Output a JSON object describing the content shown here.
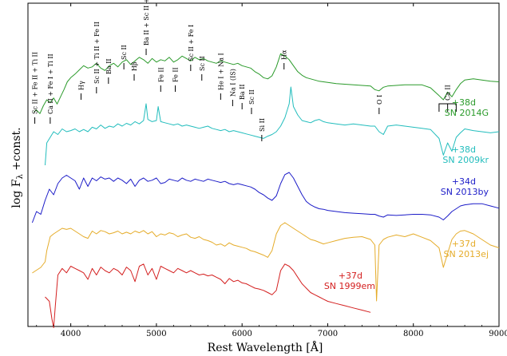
{
  "chart_data": {
    "type": "line",
    "xlabel": "Rest Wavelength [Å]",
    "ylabel": "log F",
    "ylabel_sub": "λ",
    "ylabel_suffix": " +const.",
    "xlim": [
      3500,
      9000
    ],
    "xticks": [
      4000,
      5000,
      6000,
      7000,
      8000,
      9000
    ],
    "x_tick_labels": [
      "4000",
      "5000",
      "6000",
      "7000",
      "8000",
      "9000"
    ],
    "y_ticks_shown": false,
    "grid": false,
    "series": [
      {
        "epoch": "+38d",
        "name": "SN 2014G",
        "color": "#2a9a2a",
        "x": [
          3570,
          3600,
          3640,
          3680,
          3720,
          3760,
          3800,
          3840,
          3880,
          3920,
          3960,
          4000,
          4050,
          4100,
          4150,
          4200,
          4250,
          4300,
          4350,
          4400,
          4450,
          4500,
          4550,
          4600,
          4650,
          4700,
          4750,
          4800,
          4850,
          4900,
          4950,
          5000,
          5050,
          5100,
          5150,
          5200,
          5250,
          5300,
          5350,
          5400,
          5450,
          5500,
          5550,
          5600,
          5650,
          5700,
          5750,
          5800,
          5850,
          5900,
          5950,
          6000,
          6050,
          6100,
          6150,
          6200,
          6250,
          6300,
          6350,
          6400,
          6450,
          6500,
          6550,
          6600,
          6650,
          6700,
          6750,
          6800,
          6850,
          6900,
          6950,
          7000,
          7100,
          7200,
          7300,
          7400,
          7500,
          7550,
          7600,
          7650,
          7700,
          7800,
          7900,
          8000,
          8100,
          8200,
          8300,
          8350,
          8400,
          8450,
          8500,
          8550,
          8600,
          8700,
          8800,
          8900,
          9000
        ],
        "y": [
          -0.15,
          -0.12,
          -0.18,
          -0.05,
          0.05,
          0.0,
          0.08,
          -0.02,
          0.1,
          0.22,
          0.35,
          0.42,
          0.48,
          0.55,
          0.62,
          0.58,
          0.6,
          0.66,
          0.58,
          0.54,
          0.62,
          0.66,
          0.6,
          0.68,
          0.72,
          0.64,
          0.7,
          0.76,
          0.72,
          0.66,
          0.74,
          0.68,
          0.72,
          0.7,
          0.76,
          0.68,
          0.72,
          0.78,
          0.74,
          0.7,
          0.76,
          0.72,
          0.74,
          0.7,
          0.68,
          0.66,
          0.7,
          0.68,
          0.66,
          0.64,
          0.66,
          0.62,
          0.6,
          0.58,
          0.52,
          0.48,
          0.42,
          0.4,
          0.45,
          0.6,
          0.82,
          0.78,
          0.72,
          0.62,
          0.52,
          0.46,
          0.42,
          0.4,
          0.38,
          0.36,
          0.35,
          0.34,
          0.32,
          0.31,
          0.3,
          0.29,
          0.28,
          0.22,
          0.2,
          0.26,
          0.28,
          0.29,
          0.3,
          0.3,
          0.3,
          0.25,
          0.12,
          0.05,
          0.18,
          0.1,
          0.22,
          0.32,
          0.38,
          0.4,
          0.38,
          0.36,
          0.35
        ]
      },
      {
        "epoch": "+38d",
        "name": "SN 2009kr",
        "color": "#22bdbd",
        "x": [
          3700,
          3720,
          3760,
          3800,
          3850,
          3900,
          3950,
          4000,
          4050,
          4100,
          4150,
          4200,
          4250,
          4300,
          4350,
          4400,
          4450,
          4500,
          4550,
          4600,
          4650,
          4700,
          4750,
          4800,
          4850,
          4880,
          4900,
          4950,
          5000,
          5020,
          5050,
          5100,
          5150,
          5200,
          5250,
          5300,
          5350,
          5400,
          5450,
          5500,
          5550,
          5600,
          5650,
          5700,
          5750,
          5800,
          5850,
          5900,
          5950,
          6000,
          6050,
          6100,
          6150,
          6200,
          6250,
          6300,
          6350,
          6400,
          6450,
          6500,
          6550,
          6570,
          6600,
          6650,
          6700,
          6750,
          6800,
          6850,
          6900,
          6950,
          7000,
          7100,
          7200,
          7300,
          7400,
          7500,
          7550,
          7600,
          7650,
          7700,
          7800,
          7900,
          8000,
          8100,
          8200,
          8300,
          8350,
          8400,
          8450,
          8500,
          8550,
          8600,
          8700,
          8800,
          8900,
          9000
        ],
        "y": [
          -0.6,
          -0.2,
          -0.1,
          0.0,
          -0.05,
          0.05,
          0.0,
          0.02,
          0.05,
          0.0,
          0.04,
          0.0,
          0.08,
          0.05,
          0.12,
          0.06,
          0.1,
          0.08,
          0.14,
          0.1,
          0.15,
          0.12,
          0.18,
          0.14,
          0.2,
          0.5,
          0.22,
          0.18,
          0.2,
          0.45,
          0.18,
          0.16,
          0.14,
          0.12,
          0.14,
          0.1,
          0.12,
          0.1,
          0.08,
          0.06,
          0.08,
          0.1,
          0.06,
          0.04,
          0.02,
          0.04,
          0.0,
          0.02,
          0.0,
          -0.02,
          -0.04,
          -0.06,
          -0.08,
          -0.1,
          -0.12,
          -0.08,
          -0.05,
          0.0,
          0.1,
          0.25,
          0.5,
          0.8,
          0.45,
          0.3,
          0.2,
          0.18,
          0.16,
          0.2,
          0.22,
          0.18,
          0.16,
          0.14,
          0.12,
          0.14,
          0.12,
          0.1,
          0.1,
          0.0,
          -0.05,
          0.1,
          0.12,
          0.1,
          0.08,
          0.06,
          0.04,
          -0.12,
          -0.42,
          -0.2,
          -0.35,
          -0.1,
          -0.02,
          0.05,
          0.02,
          0.0,
          -0.02,
          0.0
        ]
      },
      {
        "epoch": "+34d",
        "name": "SN 2013by",
        "color": "#1c1cc8",
        "x": [
          3550,
          3600,
          3650,
          3700,
          3750,
          3800,
          3850,
          3900,
          3950,
          4000,
          4050,
          4100,
          4150,
          4200,
          4250,
          4300,
          4350,
          4400,
          4450,
          4500,
          4550,
          4600,
          4650,
          4700,
          4750,
          4800,
          4850,
          4900,
          4950,
          5000,
          5050,
          5100,
          5150,
          5200,
          5250,
          5300,
          5350,
          5400,
          5450,
          5500,
          5550,
          5600,
          5650,
          5700,
          5750,
          5800,
          5850,
          5900,
          5950,
          6000,
          6050,
          6100,
          6150,
          6200,
          6250,
          6300,
          6350,
          6400,
          6450,
          6500,
          6550,
          6600,
          6650,
          6700,
          6750,
          6800,
          6850,
          6900,
          6950,
          7000,
          7100,
          7200,
          7300,
          7400,
          7500,
          7550,
          7600,
          7650,
          7700,
          7800,
          7900,
          8000,
          8100,
          8200,
          8300,
          8350,
          8400,
          8450,
          8500,
          8550,
          8600,
          8700,
          8800,
          8900,
          9000
        ],
        "y": [
          -1.1,
          -0.9,
          -0.95,
          -0.7,
          -0.5,
          -0.6,
          -0.4,
          -0.3,
          -0.25,
          -0.3,
          -0.35,
          -0.5,
          -0.3,
          -0.45,
          -0.3,
          -0.35,
          -0.28,
          -0.32,
          -0.3,
          -0.36,
          -0.3,
          -0.34,
          -0.4,
          -0.32,
          -0.45,
          -0.34,
          -0.3,
          -0.36,
          -0.34,
          -0.3,
          -0.4,
          -0.38,
          -0.32,
          -0.34,
          -0.36,
          -0.3,
          -0.34,
          -0.36,
          -0.32,
          -0.34,
          -0.36,
          -0.32,
          -0.34,
          -0.36,
          -0.38,
          -0.36,
          -0.4,
          -0.42,
          -0.4,
          -0.42,
          -0.44,
          -0.46,
          -0.5,
          -0.56,
          -0.6,
          -0.66,
          -0.7,
          -0.62,
          -0.4,
          -0.24,
          -0.2,
          -0.3,
          -0.45,
          -0.6,
          -0.72,
          -0.78,
          -0.82,
          -0.85,
          -0.86,
          -0.88,
          -0.9,
          -0.92,
          -0.93,
          -0.94,
          -0.95,
          -0.95,
          -0.98,
          -1.0,
          -0.96,
          -0.97,
          -0.96,
          -0.95,
          -0.95,
          -0.96,
          -1.0,
          -1.05,
          -0.98,
          -0.9,
          -0.85,
          -0.8,
          -0.78,
          -0.76,
          -0.76,
          -0.8,
          -0.84
        ]
      },
      {
        "epoch": "+37d",
        "name": "SN 2013ej",
        "color": "#e5ac2a",
        "x": [
          3550,
          3600,
          3650,
          3700,
          3720,
          3760,
          3800,
          3850,
          3900,
          3950,
          4000,
          4050,
          4100,
          4150,
          4200,
          4250,
          4300,
          4350,
          4400,
          4450,
          4500,
          4550,
          4600,
          4650,
          4700,
          4750,
          4800,
          4850,
          4900,
          4950,
          5000,
          5050,
          5100,
          5150,
          5200,
          5250,
          5300,
          5350,
          5400,
          5450,
          5500,
          5550,
          5600,
          5650,
          5700,
          5750,
          5800,
          5850,
          5900,
          5950,
          6000,
          6050,
          6100,
          6150,
          6200,
          6250,
          6300,
          6350,
          6400,
          6450,
          6500,
          6550,
          6600,
          6650,
          6700,
          6750,
          6800,
          6850,
          6900,
          6950,
          7000,
          7100,
          7200,
          7300,
          7400,
          7500,
          7550,
          7570,
          7600,
          7650,
          7700,
          7800,
          7900,
          8000,
          8100,
          8200,
          8300,
          8350,
          8400,
          8450,
          8500,
          8550,
          8600,
          8700,
          8800,
          8900,
          9000
        ],
        "y": [
          -2.2,
          -2.15,
          -2.1,
          -2.0,
          -1.8,
          -1.55,
          -1.5,
          -1.45,
          -1.4,
          -1.42,
          -1.4,
          -1.45,
          -1.5,
          -1.55,
          -1.58,
          -1.45,
          -1.5,
          -1.44,
          -1.46,
          -1.5,
          -1.48,
          -1.45,
          -1.5,
          -1.47,
          -1.5,
          -1.45,
          -1.48,
          -1.44,
          -1.5,
          -1.46,
          -1.55,
          -1.5,
          -1.52,
          -1.48,
          -1.5,
          -1.55,
          -1.52,
          -1.5,
          -1.56,
          -1.58,
          -1.55,
          -1.6,
          -1.62,
          -1.65,
          -1.7,
          -1.68,
          -1.72,
          -1.66,
          -1.7,
          -1.72,
          -1.74,
          -1.76,
          -1.8,
          -1.82,
          -1.85,
          -1.88,
          -1.92,
          -1.8,
          -1.5,
          -1.35,
          -1.3,
          -1.35,
          -1.4,
          -1.45,
          -1.5,
          -1.55,
          -1.6,
          -1.62,
          -1.65,
          -1.68,
          -1.66,
          -1.62,
          -1.58,
          -1.56,
          -1.55,
          -1.6,
          -1.7,
          -2.7,
          -1.7,
          -1.6,
          -1.56,
          -1.52,
          -1.55,
          -1.5,
          -1.56,
          -1.62,
          -1.75,
          -2.1,
          -1.85,
          -1.6,
          -1.5,
          -1.45,
          -1.44,
          -1.5,
          -1.6,
          -1.7,
          -1.75
        ]
      },
      {
        "epoch": "+37d",
        "name": "SN 1999em",
        "color": "#d42020",
        "x": [
          3700,
          3750,
          3780,
          3800,
          3820,
          3850,
          3900,
          3950,
          4000,
          4050,
          4100,
          4150,
          4200,
          4250,
          4300,
          4350,
          4400,
          4450,
          4500,
          4550,
          4600,
          4650,
          4700,
          4750,
          4800,
          4850,
          4900,
          4950,
          5000,
          5050,
          5100,
          5150,
          5200,
          5250,
          5300,
          5350,
          5400,
          5450,
          5500,
          5550,
          5600,
          5650,
          5700,
          5750,
          5800,
          5850,
          5900,
          5950,
          6000,
          6050,
          6100,
          6150,
          6200,
          6250,
          6300,
          6350,
          6400,
          6450,
          6500,
          6550,
          6600,
          6650,
          6700,
          6750,
          6800,
          6850,
          6900,
          6950,
          7000,
          7100,
          7200,
          7300,
          7400,
          7500
        ],
        "y": [
          -2.6,
          -2.7,
          -3.1,
          -3.3,
          -2.8,
          -2.1,
          -1.95,
          -2.05,
          -1.9,
          -1.95,
          -2.0,
          -2.05,
          -2.2,
          -1.95,
          -2.1,
          -1.92,
          -2.0,
          -2.05,
          -1.95,
          -2.0,
          -2.1,
          -1.92,
          -2.0,
          -2.25,
          -1.9,
          -1.85,
          -2.1,
          -1.95,
          -2.2,
          -1.9,
          -1.95,
          -2.0,
          -2.05,
          -1.95,
          -2.0,
          -2.05,
          -2.0,
          -2.05,
          -2.1,
          -2.08,
          -2.12,
          -2.1,
          -2.15,
          -2.2,
          -2.3,
          -2.18,
          -2.25,
          -2.22,
          -2.28,
          -2.3,
          -2.35,
          -2.4,
          -2.42,
          -2.45,
          -2.5,
          -2.55,
          -2.45,
          -2.0,
          -1.85,
          -1.9,
          -2.0,
          -2.15,
          -2.3,
          -2.4,
          -2.5,
          -2.55,
          -2.6,
          -2.65,
          -2.7,
          -2.75,
          -2.8,
          -2.85,
          -2.9,
          -2.95
        ]
      }
    ],
    "line_ids": [
      {
        "label": "Sc II + Fe II + Ti II",
        "x": 3580
      },
      {
        "label": "Ca II + Fe I + Ti II",
        "x": 3760
      },
      {
        "label": "Hγ",
        "x": 4120
      },
      {
        "label": "Sc II + Ti II + Fe II",
        "x": 4300
      },
      {
        "label": "Ba II",
        "x": 4440
      },
      {
        "label": "Sc II",
        "x": 4620
      },
      {
        "label": "Hβ",
        "x": 4740
      },
      {
        "label": "Ba II + Sc II + Fe II",
        "x": 4880
      },
      {
        "label": "Fe II",
        "x": 5050
      },
      {
        "label": "Fe II",
        "x": 5220
      },
      {
        "label": "Sc II + Fe I",
        "x": 5400
      },
      {
        "label": "Sc II",
        "x": 5530
      },
      {
        "label": "He I + Na I",
        "x": 5750
      },
      {
        "label": "Na I (IS)",
        "x": 5890
      },
      {
        "label": "Ba II",
        "x": 6000
      },
      {
        "label": "Sc II",
        "x": 6110
      },
      {
        "label": "Si II",
        "x": 6230
      },
      {
        "label": "Hα",
        "x": 6490
      },
      {
        "label": "O I",
        "x": 7600
      },
      {
        "label": "Ca II",
        "x": 8400
      }
    ]
  }
}
